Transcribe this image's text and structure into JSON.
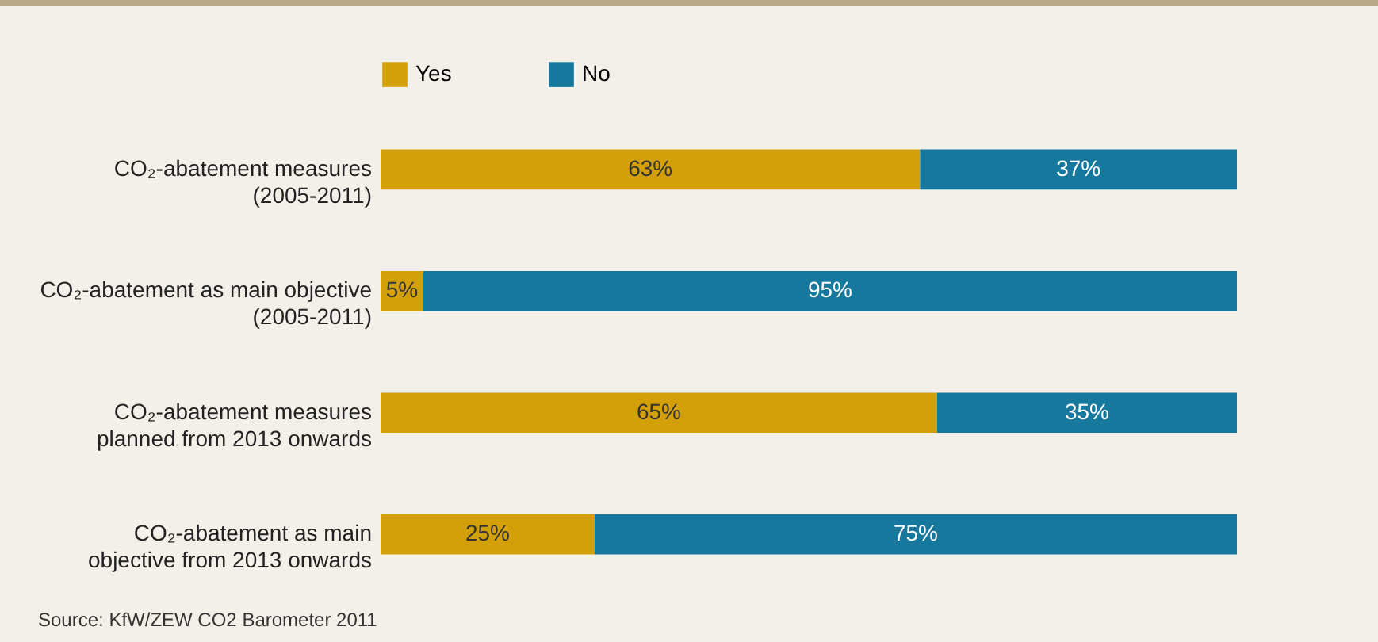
{
  "chart_data": {
    "type": "bar",
    "orientation": "horizontal",
    "stacked": true,
    "categories": [
      "CO₂-abatement measures\n(2005-2011)",
      "CO₂-abatement as main objective\n(2005-2011)",
      "CO₂-abatement measures\nplanned from 2013 onwards",
      "CO₂-abatement as main\nobjective from 2013 onwards"
    ],
    "series": [
      {
        "name": "Yes",
        "color": "#d4a00a",
        "values": [
          63,
          5,
          65,
          25
        ],
        "value_labels": [
          "63%",
          "5%",
          "65%",
          "25%"
        ]
      },
      {
        "name": "No",
        "color": "#17789e",
        "values": [
          37,
          95,
          35,
          75
        ],
        "value_labels": [
          "37%",
          "95%",
          "35%",
          "75%"
        ]
      }
    ],
    "legend": "top",
    "annotations": [
      "Source: KfW/ZEW CO2 Barometer 2011"
    ]
  }
}
